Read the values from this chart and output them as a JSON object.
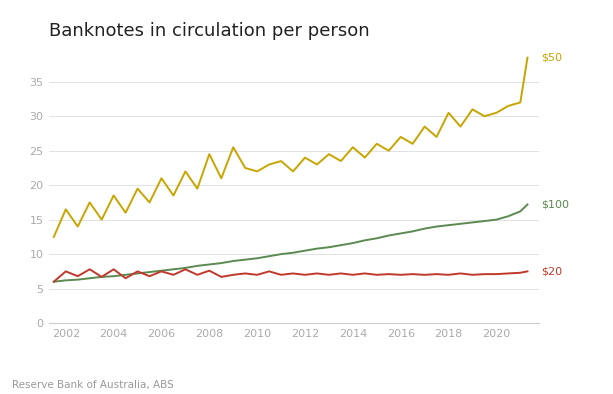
{
  "title": "Banknotes in circulation per person",
  "source": "Reserve Bank of Australia, ABS",
  "background_color": "#ffffff",
  "plot_bg_color": "#ffffff",
  "ylim": [
    0,
    40
  ],
  "yticks": [
    0,
    5,
    10,
    15,
    20,
    25,
    30,
    35
  ],
  "xlabel_years": [
    2002,
    2004,
    2006,
    2008,
    2010,
    2012,
    2014,
    2016,
    2018,
    2020
  ],
  "color_50": "#c8a500",
  "color_100": "#5a8a50",
  "color_20": "#c0392b",
  "label_50": "$50",
  "label_100": "$100",
  "label_20": "$20",
  "series_50": {
    "x": [
      2001.5,
      2002.0,
      2002.5,
      2003.0,
      2003.5,
      2004.0,
      2004.5,
      2005.0,
      2005.5,
      2006.0,
      2006.5,
      2007.0,
      2007.5,
      2008.0,
      2008.5,
      2009.0,
      2009.5,
      2010.0,
      2010.5,
      2011.0,
      2011.5,
      2012.0,
      2012.5,
      2013.0,
      2013.5,
      2014.0,
      2014.5,
      2015.0,
      2015.5,
      2016.0,
      2016.5,
      2017.0,
      2017.5,
      2018.0,
      2018.5,
      2019.0,
      2019.5,
      2020.0,
      2020.5,
      2021.0,
      2021.3
    ],
    "y": [
      12.5,
      16.5,
      14.0,
      17.5,
      15.0,
      18.5,
      16.0,
      19.5,
      17.5,
      21.0,
      18.5,
      22.0,
      19.5,
      24.5,
      21.0,
      25.5,
      22.5,
      22.0,
      23.0,
      23.5,
      22.0,
      24.0,
      23.0,
      24.5,
      23.5,
      25.5,
      24.0,
      26.0,
      25.0,
      27.0,
      26.0,
      28.5,
      27.0,
      30.5,
      28.5,
      31.0,
      30.0,
      30.5,
      31.5,
      32.0,
      38.5
    ]
  },
  "series_100": {
    "x": [
      2001.5,
      2002.0,
      2002.5,
      2003.0,
      2003.5,
      2004.0,
      2004.5,
      2005.0,
      2005.5,
      2006.0,
      2006.5,
      2007.0,
      2007.5,
      2008.0,
      2008.5,
      2009.0,
      2009.5,
      2010.0,
      2010.5,
      2011.0,
      2011.5,
      2012.0,
      2012.5,
      2013.0,
      2013.5,
      2014.0,
      2014.5,
      2015.0,
      2015.5,
      2016.0,
      2016.5,
      2017.0,
      2017.5,
      2018.0,
      2018.5,
      2019.0,
      2019.5,
      2020.0,
      2020.5,
      2021.0,
      2021.3
    ],
    "y": [
      6.0,
      6.2,
      6.3,
      6.5,
      6.7,
      6.8,
      7.0,
      7.2,
      7.4,
      7.6,
      7.8,
      8.0,
      8.3,
      8.5,
      8.7,
      9.0,
      9.2,
      9.4,
      9.7,
      10.0,
      10.2,
      10.5,
      10.8,
      11.0,
      11.3,
      11.6,
      12.0,
      12.3,
      12.7,
      13.0,
      13.3,
      13.7,
      14.0,
      14.2,
      14.4,
      14.6,
      14.8,
      15.0,
      15.5,
      16.2,
      17.2
    ]
  },
  "series_20": {
    "x": [
      2001.5,
      2002.0,
      2002.5,
      2003.0,
      2003.5,
      2004.0,
      2004.5,
      2005.0,
      2005.5,
      2006.0,
      2006.5,
      2007.0,
      2007.5,
      2008.0,
      2008.5,
      2009.0,
      2009.5,
      2010.0,
      2010.5,
      2011.0,
      2011.5,
      2012.0,
      2012.5,
      2013.0,
      2013.5,
      2014.0,
      2014.5,
      2015.0,
      2015.5,
      2016.0,
      2016.5,
      2017.0,
      2017.5,
      2018.0,
      2018.5,
      2019.0,
      2019.5,
      2020.0,
      2020.5,
      2021.0,
      2021.3
    ],
    "y": [
      6.0,
      7.5,
      6.8,
      7.8,
      6.7,
      7.8,
      6.5,
      7.5,
      6.8,
      7.5,
      7.0,
      7.8,
      7.0,
      7.6,
      6.7,
      7.0,
      7.2,
      7.0,
      7.5,
      7.0,
      7.2,
      7.0,
      7.2,
      7.0,
      7.2,
      7.0,
      7.2,
      7.0,
      7.1,
      7.0,
      7.1,
      7.0,
      7.1,
      7.0,
      7.2,
      7.0,
      7.1,
      7.1,
      7.2,
      7.3,
      7.5
    ]
  },
  "title_fontsize": 13,
  "tick_fontsize": 8,
  "source_fontsize": 7.5,
  "line_width": 1.4
}
